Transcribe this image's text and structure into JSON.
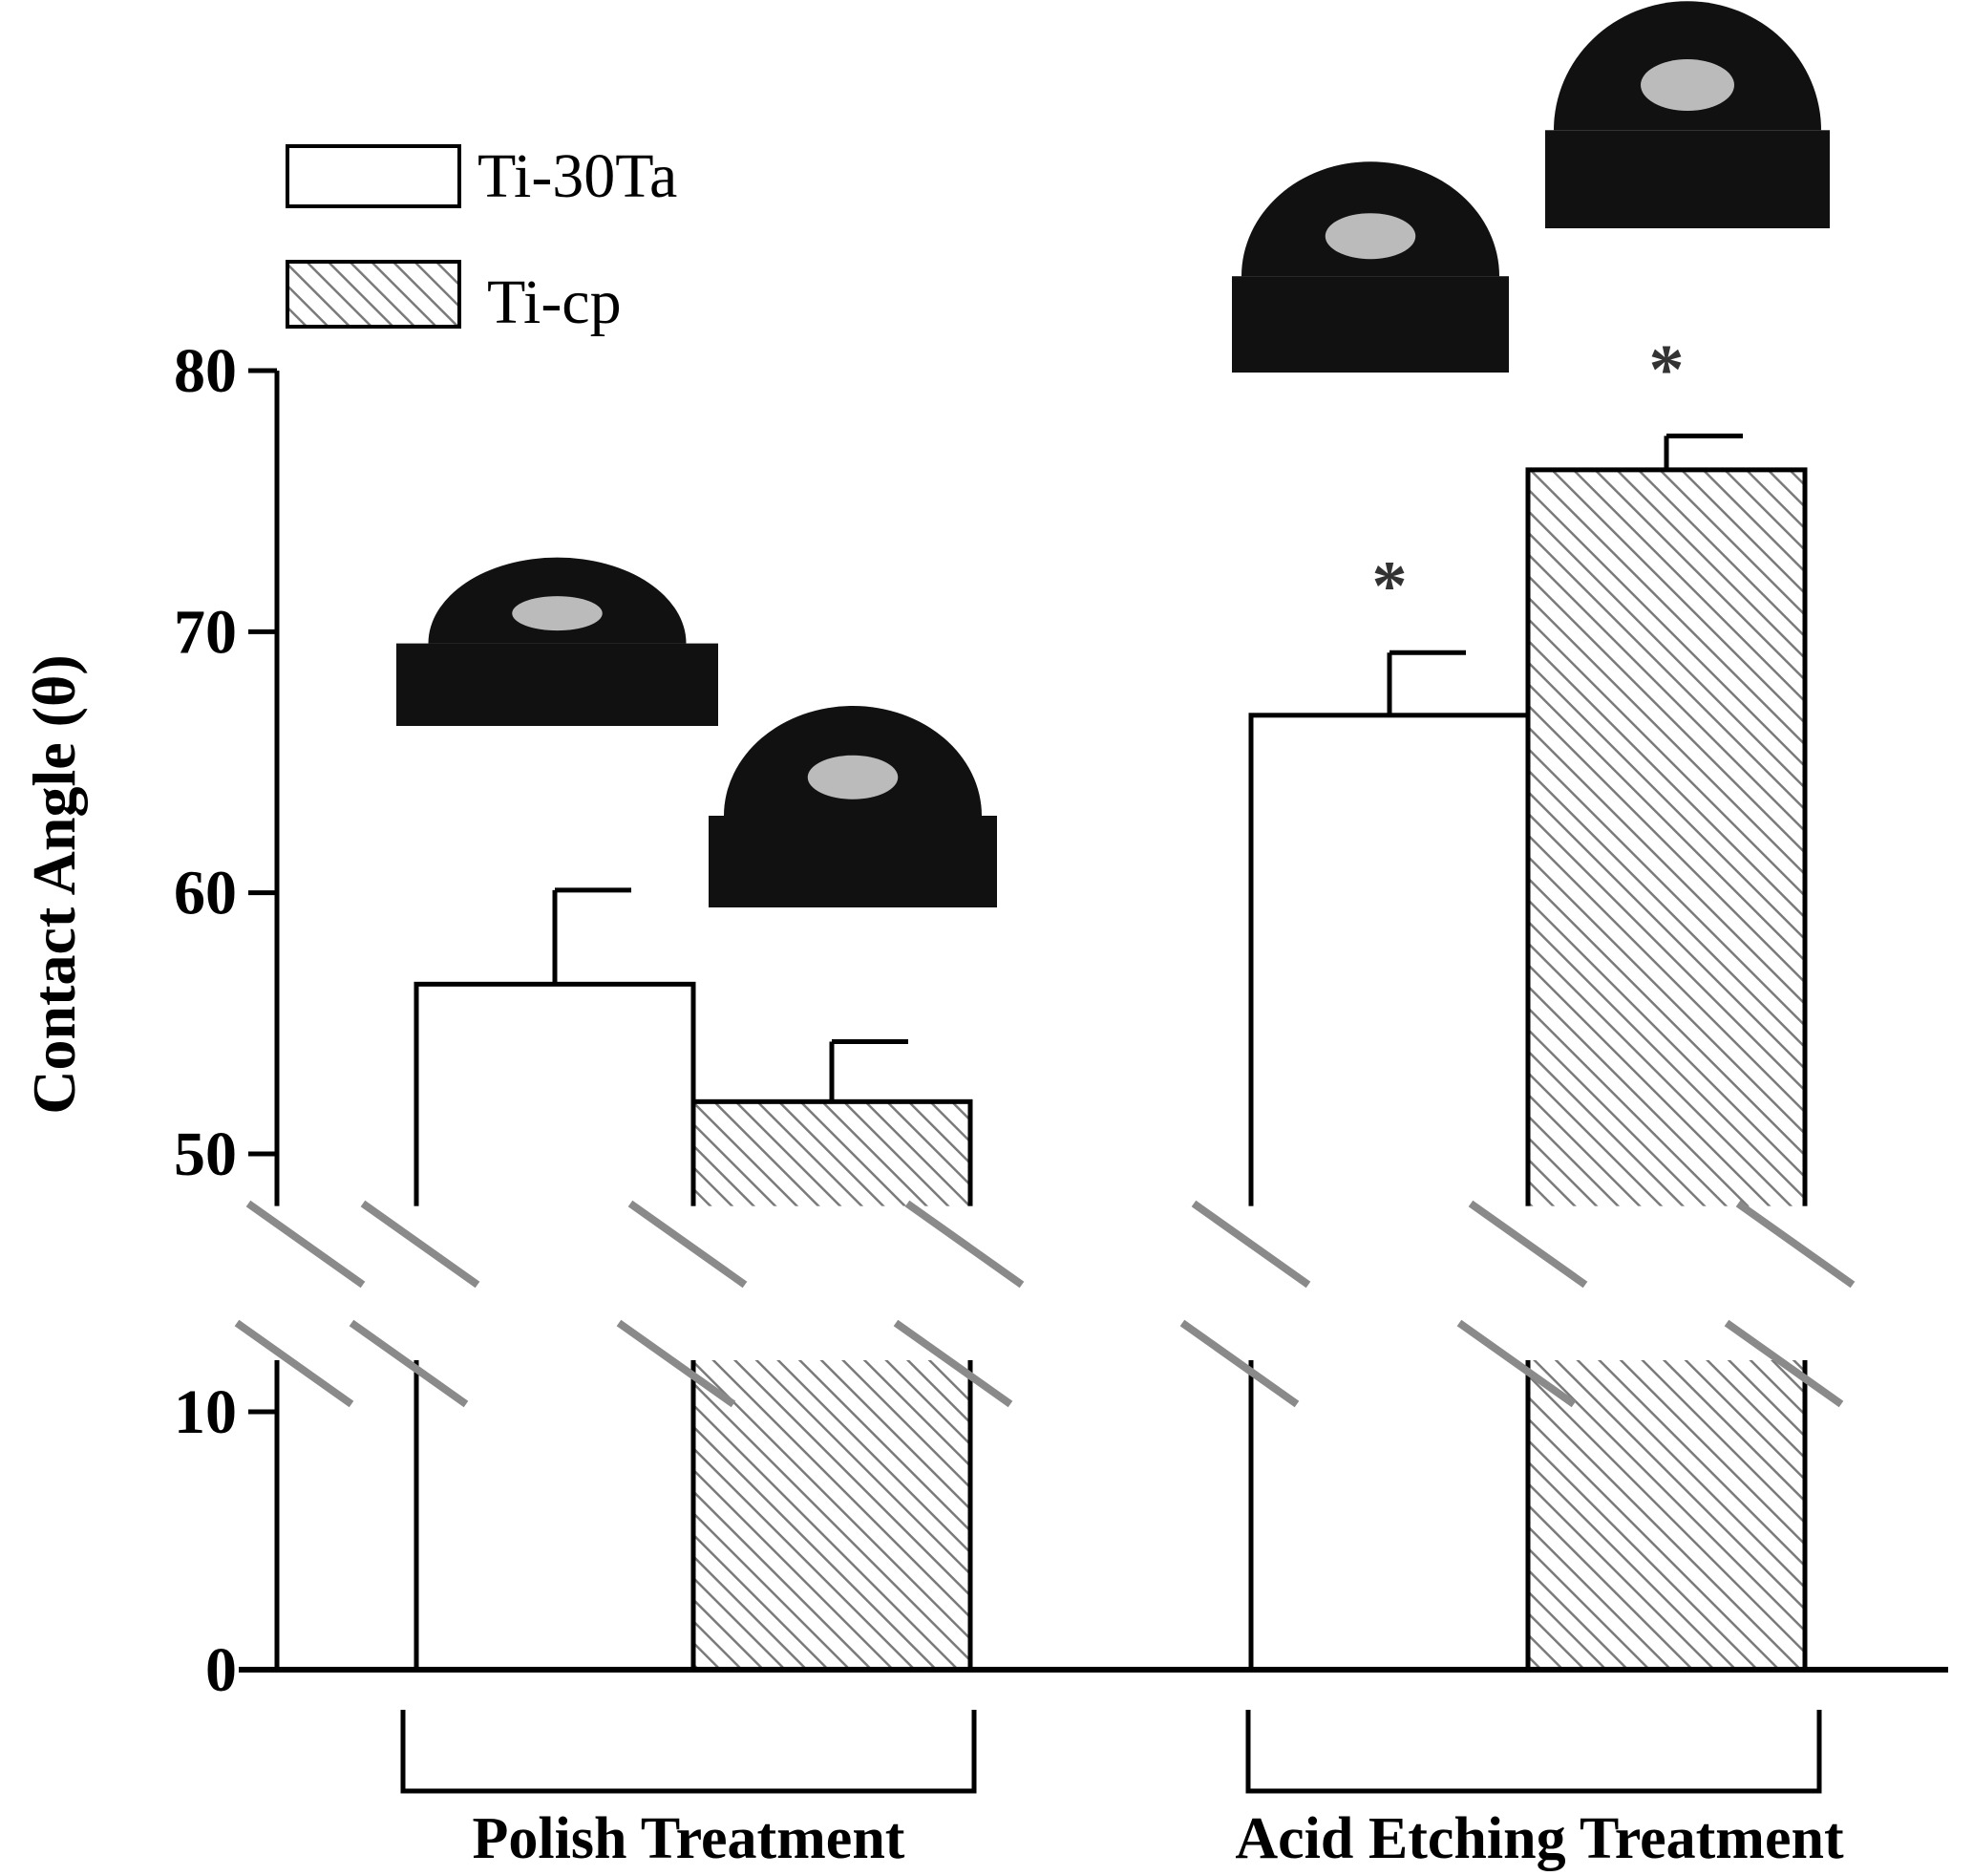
{
  "chart_data": {
    "type": "bar",
    "title": "",
    "ylabel": "Contact Angle (θ)",
    "xlabel": "",
    "ylim": [
      0,
      80
    ],
    "y_axis_break": [
      12,
      48
    ],
    "yticks": [
      0,
      10,
      50,
      60,
      70,
      80
    ],
    "ytick_labels": [
      "0",
      "10",
      "50",
      "60",
      "70",
      "80"
    ],
    "grid": false,
    "legend_position": "top-left",
    "categories": [
      "Polish Treatment",
      "Acid Etching Treatment"
    ],
    "series": [
      {
        "name": "Ti-30Ta",
        "values": [
          56.5,
          66.8
        ],
        "errors": [
          3.6,
          2.4
        ],
        "significance": [
          "",
          "*"
        ],
        "fill": "white"
      },
      {
        "name": "Ti-cp",
        "values": [
          52,
          76.2
        ],
        "errors": [
          2.3,
          1.3
        ],
        "significance": [
          "",
          "*"
        ],
        "fill": "hatched"
      }
    ],
    "insets": [
      {
        "series": "Ti-30Ta",
        "category": "Polish Treatment",
        "description": "water droplet image"
      },
      {
        "series": "Ti-cp",
        "category": "Polish Treatment",
        "description": "water droplet image"
      },
      {
        "series": "Ti-30Ta",
        "category": "Acid Etching Treatment",
        "description": "water droplet image"
      },
      {
        "series": "Ti-cp",
        "category": "Acid Etching Treatment",
        "description": "water droplet image"
      }
    ]
  },
  "colors": {
    "axis": "#000000",
    "bar_fill_plain": "#ffffff",
    "hatch_line": "#7a7a7a",
    "break_mark": "#8a8a8a",
    "droplet": "#111111",
    "droplet_highlight": "#d9d9d9"
  }
}
